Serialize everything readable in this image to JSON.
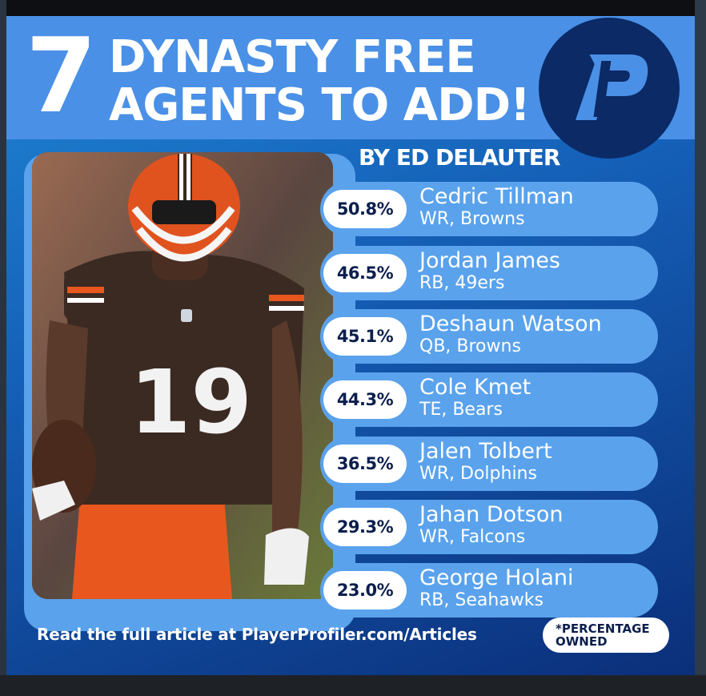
{
  "header": {
    "number": "7",
    "title_line1": "DYNASTY FREE",
    "title_line2": "AGENTS TO ADD!",
    "logo_letter": "P",
    "byline": "BY ED DELAUTER"
  },
  "players": [
    {
      "percent": "50.8%",
      "name": "Cedric Tillman",
      "info": "WR, Browns"
    },
    {
      "percent": "46.5%",
      "name": "Jordan James",
      "info": "RB, 49ers"
    },
    {
      "percent": "45.1%",
      "name": "Deshaun Watson",
      "info": "QB, Browns"
    },
    {
      "percent": "44.3%",
      "name": "Cole Kmet",
      "info": "TE, Bears"
    },
    {
      "percent": "36.5%",
      "name": "Jalen Tolbert",
      "info": "WR, Dolphins"
    },
    {
      "percent": "29.3%",
      "name": "Jahan Dotson",
      "info": "WR, Falcons"
    },
    {
      "percent": "23.0%",
      "name": "George Holani",
      "info": "RB, Seahawks"
    }
  ],
  "photo": {
    "jersey_number": "19"
  },
  "footer": {
    "text": "Read the full article at PlayerProfiler.com/Articles",
    "note_line1": "*PERCENTAGE",
    "note_line2": "OWNED"
  },
  "colors": {
    "header_band": "#4a90e6",
    "row_pill": "#5aa2ec",
    "logo_bg": "#0b2a66",
    "text_dark": "#0b1f4d",
    "helmet": "#e0531f",
    "jersey": "#3b2a22"
  }
}
